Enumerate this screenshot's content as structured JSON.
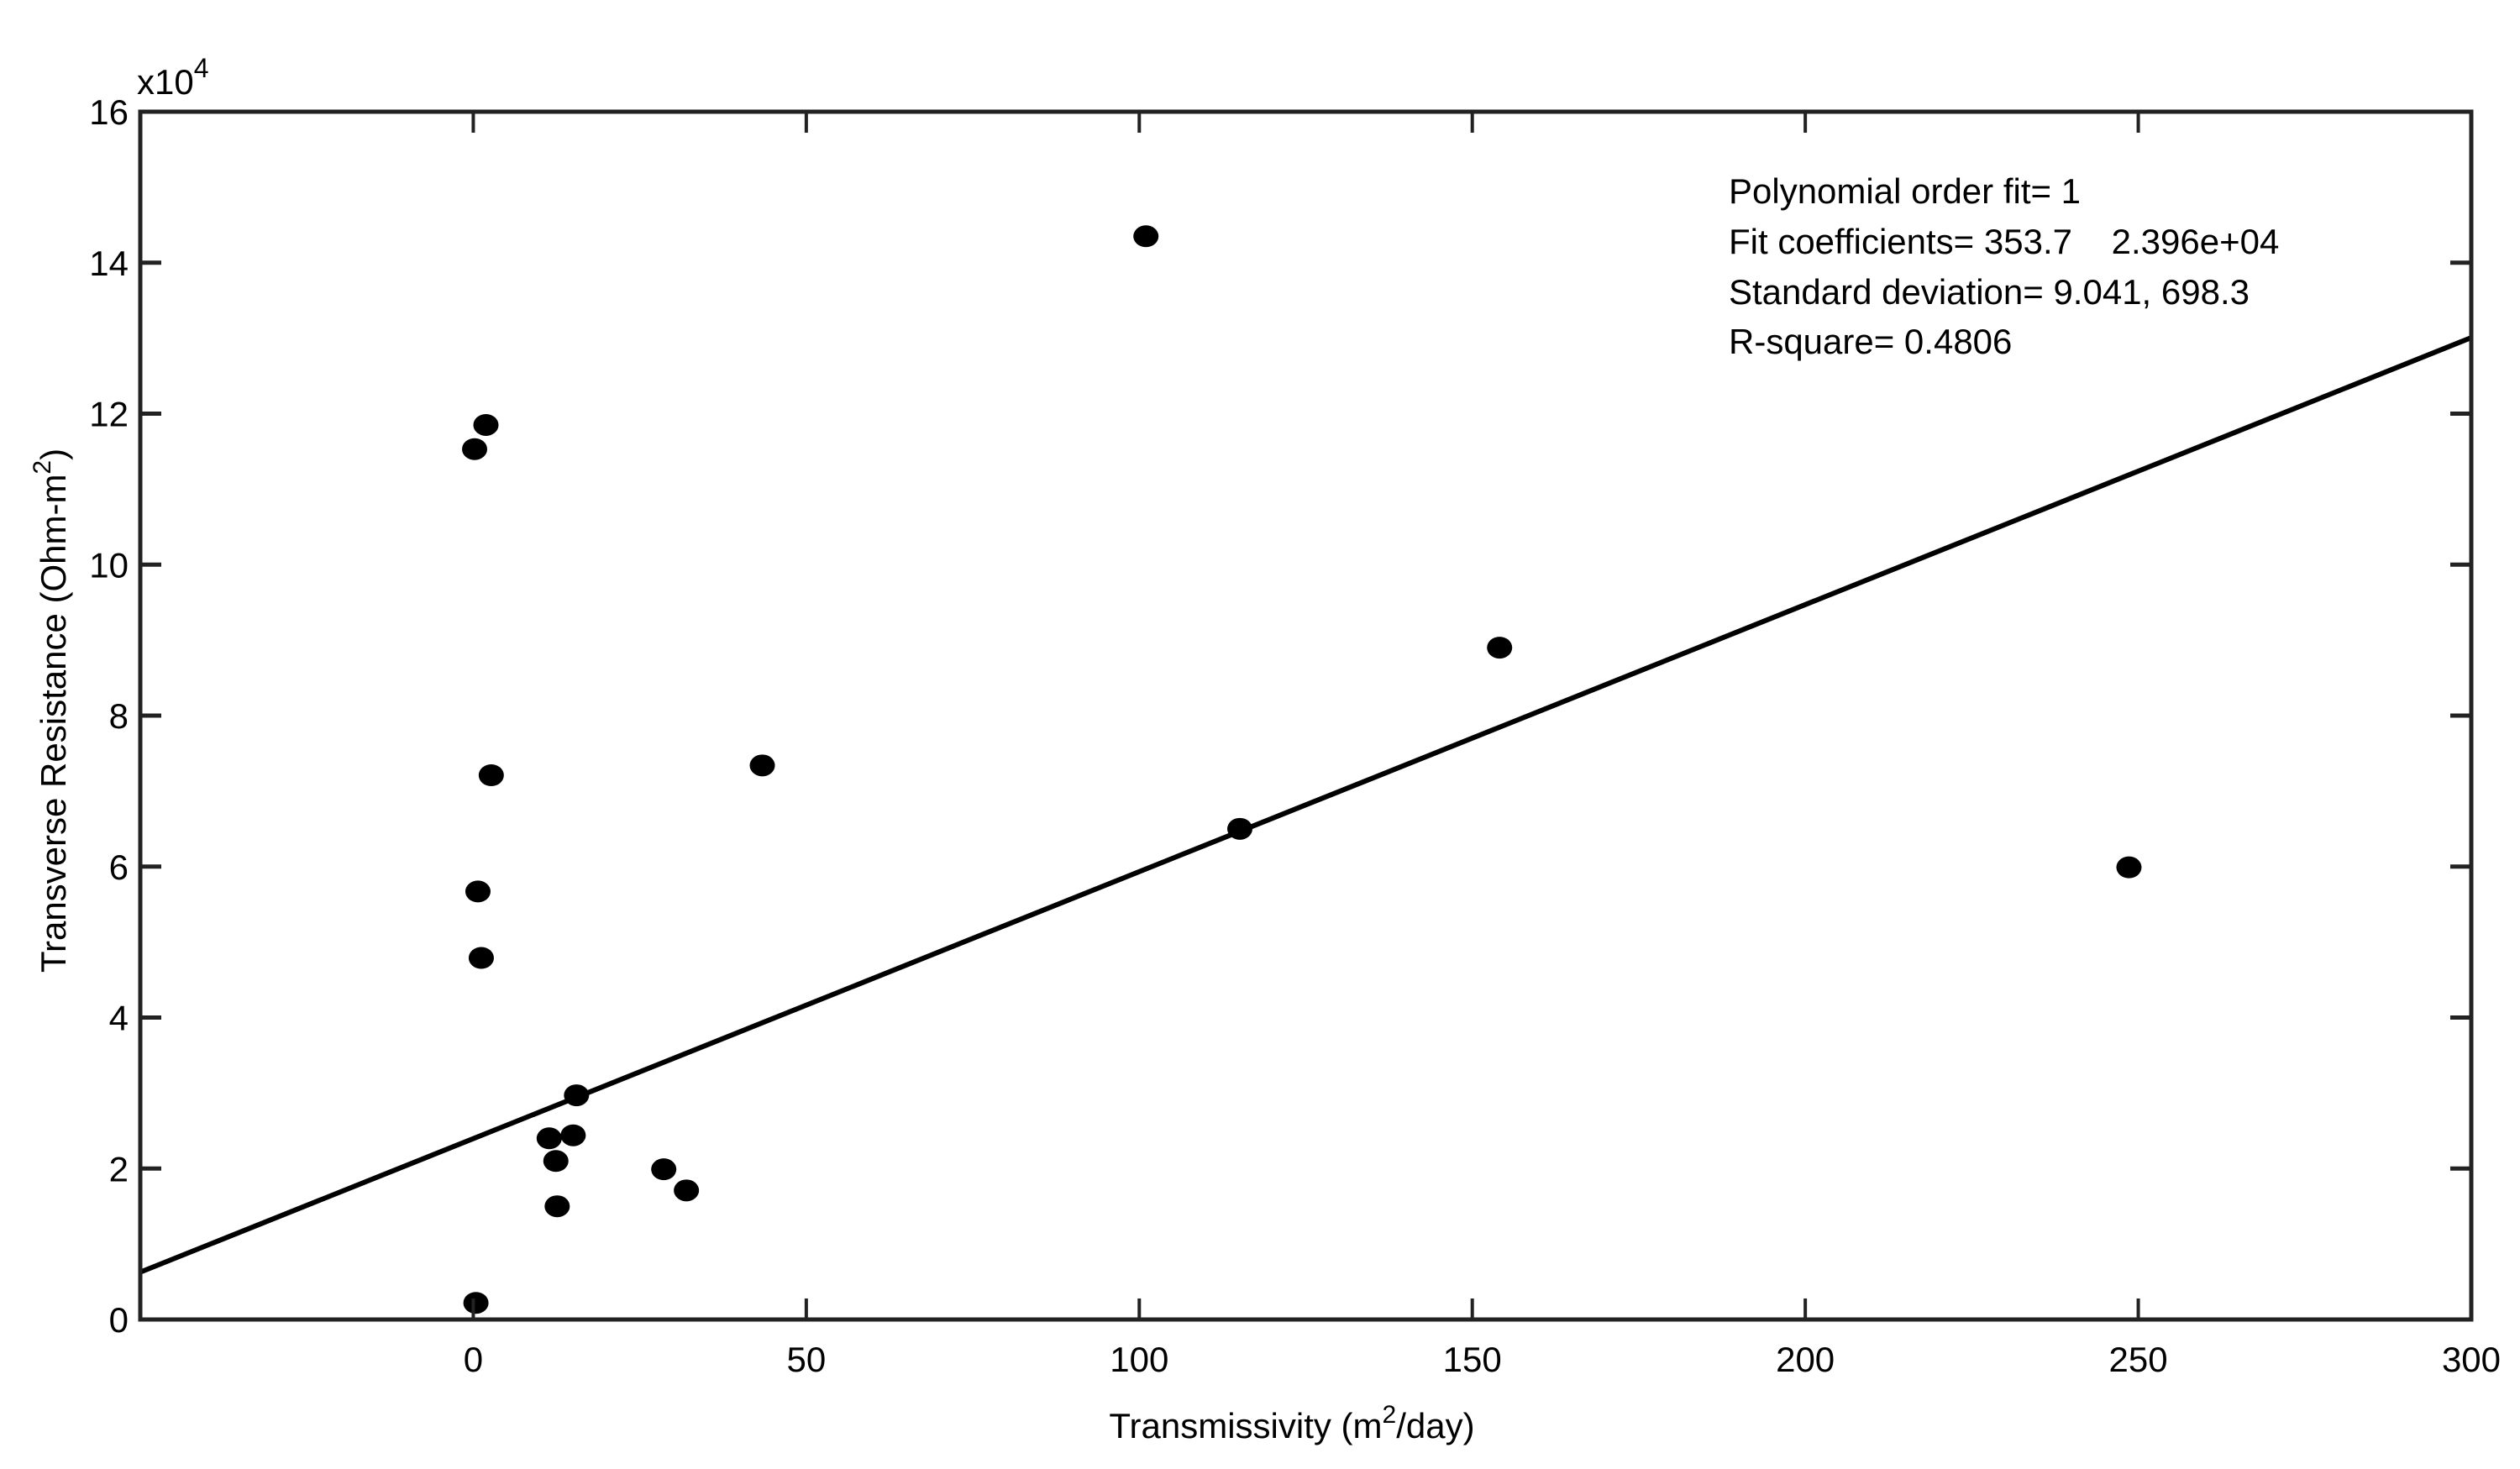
{
  "chart_data": {
    "type": "scatter",
    "xlabel": "Transmissivity (m",
    "xlabel_sup": "2",
    "xlabel_end": "/day)",
    "ylabel": "Transverse Resistance (Ohm-m",
    "ylabel_sup": "2",
    "ylabel_end": ")",
    "y_multiplier": "x10",
    "y_multiplier_exp": "4",
    "xlim": [
      -50,
      300
    ],
    "ylim": [
      0,
      16
    ],
    "x_ticks": [
      0,
      50,
      100,
      150,
      200,
      250,
      300
    ],
    "y_ticks": [
      0,
      2,
      4,
      6,
      8,
      10,
      12,
      14,
      16
    ],
    "grid": false,
    "marker_color": "#000000",
    "points": [
      {
        "x": 101,
        "y": 14.35
      },
      {
        "x": 1.9,
        "y": 11.85
      },
      {
        "x": 0.2,
        "y": 11.53
      },
      {
        "x": 2.7,
        "y": 7.21
      },
      {
        "x": 0.7,
        "y": 5.67
      },
      {
        "x": 1.2,
        "y": 4.79
      },
      {
        "x": 0.4,
        "y": 0.22
      },
      {
        "x": 43.4,
        "y": 7.34
      },
      {
        "x": 154.1,
        "y": 8.9
      },
      {
        "x": 115.1,
        "y": 6.5
      },
      {
        "x": 248.6,
        "y": 5.99
      },
      {
        "x": 15.5,
        "y": 2.97
      },
      {
        "x": 11.4,
        "y": 2.4
      },
      {
        "x": 15.0,
        "y": 2.44
      },
      {
        "x": 12.4,
        "y": 2.1
      },
      {
        "x": 12.6,
        "y": 1.5
      },
      {
        "x": 28.6,
        "y": 1.99
      },
      {
        "x": 32.0,
        "y": 1.71
      }
    ],
    "fit_line": {
      "slope": 353.7,
      "intercept": 23960,
      "color": "#000000"
    },
    "annotations": [
      "Polynomial order fit= 1",
      "Fit coefficients= 353.7    2.396e+04",
      "Standard deviation= 9.041, 698.3",
      "R-square= 0.4806"
    ]
  }
}
